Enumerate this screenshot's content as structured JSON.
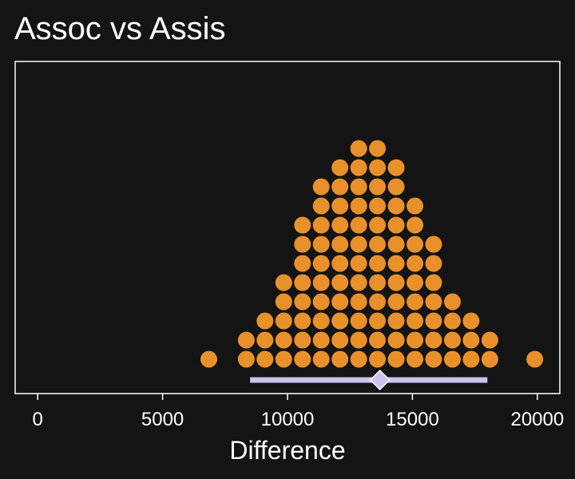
{
  "chart_data": {
    "type": "scatter",
    "subtype": "dotplot",
    "title": "Assoc vs Assis",
    "xlabel": "Difference",
    "ylabel": "",
    "xlim": [
      -900,
      20900
    ],
    "xticks": [
      0,
      5000,
      10000,
      15000,
      20000
    ],
    "grid": false,
    "colors": {
      "background": "#141414",
      "frame": "#ffffff",
      "dots": "#E8912B",
      "interval": "#CEC2F0",
      "point_estimate": "#CEC2F0",
      "text": "#ffffff"
    },
    "dot_columns": [
      {
        "x": 6850,
        "count": 1
      },
      {
        "x": 8350,
        "count": 2
      },
      {
        "x": 9100,
        "count": 3
      },
      {
        "x": 9850,
        "count": 5
      },
      {
        "x": 10600,
        "count": 8
      },
      {
        "x": 11350,
        "count": 10
      },
      {
        "x": 12100,
        "count": 11
      },
      {
        "x": 12850,
        "count": 12
      },
      {
        "x": 13600,
        "count": 12
      },
      {
        "x": 14350,
        "count": 11
      },
      {
        "x": 15100,
        "count": 9
      },
      {
        "x": 15850,
        "count": 7
      },
      {
        "x": 16600,
        "count": 4
      },
      {
        "x": 17350,
        "count": 3
      },
      {
        "x": 18100,
        "count": 2
      },
      {
        "x": 19900,
        "count": 1
      }
    ],
    "interval": {
      "low": 8500,
      "high": 18000,
      "estimate": 13700
    }
  }
}
